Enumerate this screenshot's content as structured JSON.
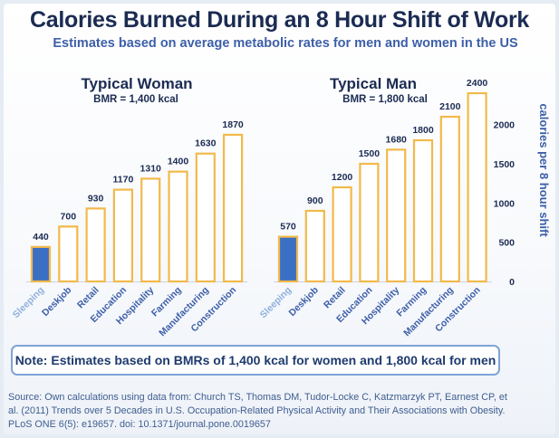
{
  "header": {
    "title": "Calories Burned During an 8 Hour Shift of Work",
    "subtitle": "Estimates based on average metabolic rates for men and women in the US"
  },
  "colors": {
    "bar_fill": "#ffffff",
    "bar_border": "#f2b94a",
    "highlight_fill": "#3a6fc4",
    "highlight_border": "#f2b94a",
    "text_dark": "#1b2b52",
    "text_blue": "#3d5fa8",
    "axis": "#7a8fb0"
  },
  "chart_data": [
    {
      "type": "bar",
      "title": "Typical Woman",
      "subtitle": "BMR = 1,400 kcal",
      "categories": [
        "Sleeping",
        "Deskjob",
        "Retail",
        "Education",
        "Hospitality",
        "Farming",
        "Manufacturing",
        "Construction"
      ],
      "values": [
        440,
        700,
        930,
        1170,
        1310,
        1400,
        1630,
        1870
      ],
      "value_labels": [
        "440",
        "700",
        "930",
        "1170",
        "1310",
        "1400",
        "1630",
        "1870"
      ],
      "highlight_index": 0,
      "ylim": [
        0,
        2400
      ]
    },
    {
      "type": "bar",
      "title": "Typical Man",
      "subtitle": "BMR = 1,800 kcal",
      "categories": [
        "Sleeping",
        "Deskjob",
        "Retail",
        "Education",
        "Hospitality",
        "Farming",
        "Manufacturing",
        "Construction"
      ],
      "values": [
        570,
        900,
        1200,
        1500,
        1680,
        1800,
        2100,
        2400
      ],
      "value_labels": [
        "570",
        "900",
        "1200",
        "1500",
        "1680",
        "1800",
        "2100",
        "2400"
      ],
      "highlight_index": 0,
      "ylim": [
        0,
        2400
      ],
      "yticks": [
        0,
        500,
        1000,
        1500,
        2000
      ],
      "ytick_labels": [
        "0",
        "500",
        "1000",
        "1500",
        "2000"
      ],
      "ylabel": "calories per 8 hour shift"
    }
  ],
  "note": "Note: Estimates based on BMRs of 1,400 kcal for women and 1,800 kcal for men",
  "source": "Source: Own calculations using data from: Church TS, Thomas DM, Tudor-Locke C, Katzmarzyk PT, Earnest CP, et al. (2011) Trends over 5 Decades in U.S. Occupation-Related Physical Activity and Their Associations with Obesity. PLoS ONE 6(5): e19657. doi: 10.1371/journal.pone.0019657"
}
